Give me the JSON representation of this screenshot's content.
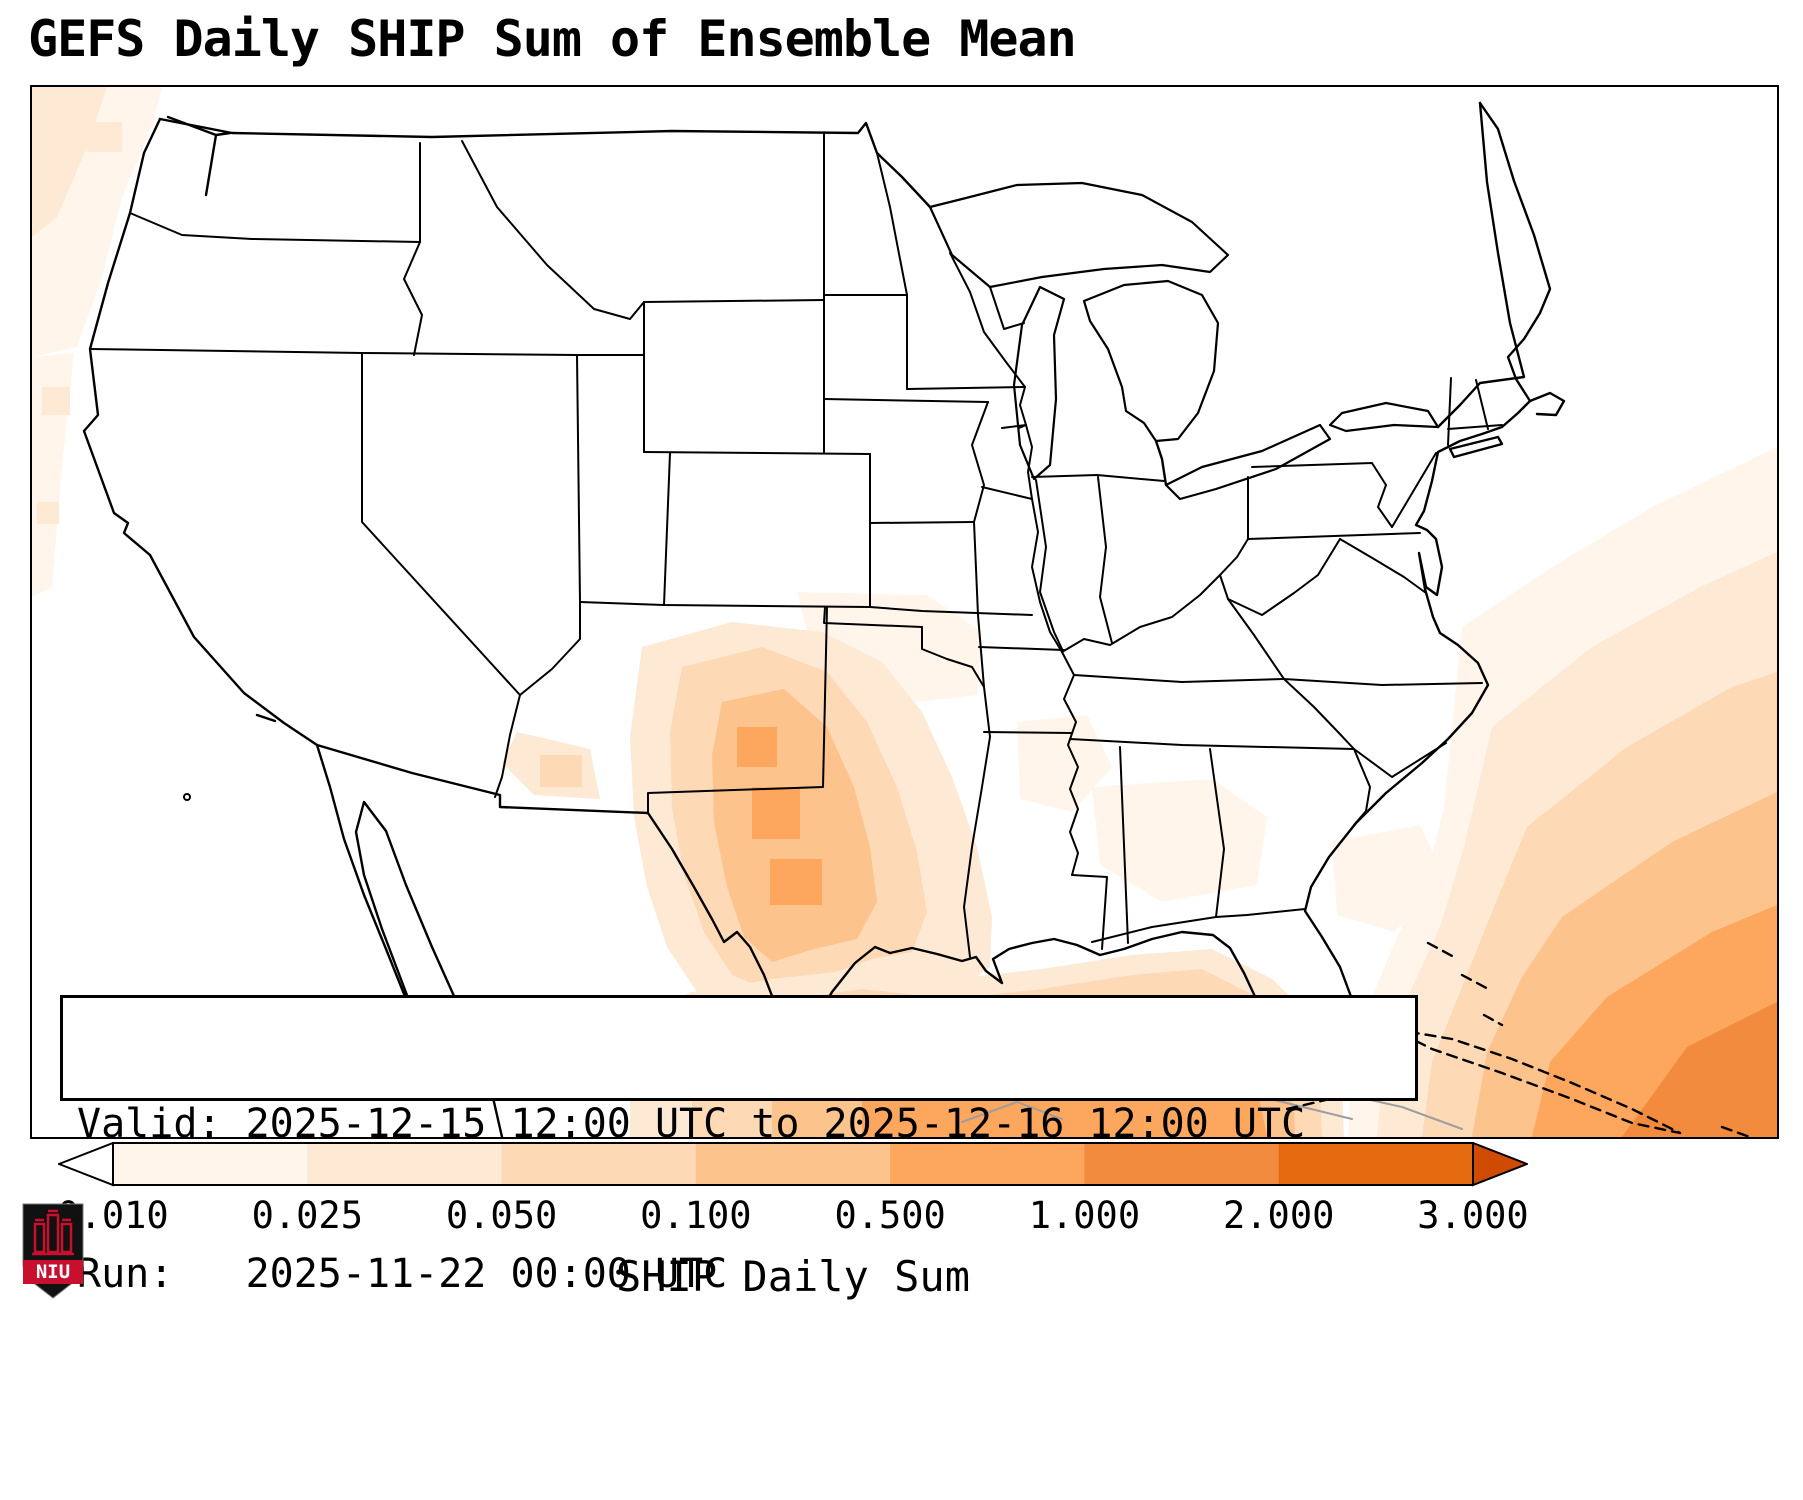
{
  "title": "GEFS Daily SHIP Sum of Ensemble Mean",
  "info_box": {
    "valid_label": "Valid:",
    "valid_value": "2025-12-15 12:00 UTC to 2025-12-16 12:00 UTC",
    "run_label": "Run:",
    "run_value": "2025-11-22 00:00 UTC"
  },
  "colorbar": {
    "label": "SHIP Daily Sum",
    "ticks": [
      "0.010",
      "0.025",
      "0.050",
      "0.100",
      "0.500",
      "1.000",
      "2.000",
      "3.000"
    ],
    "segment_colors": [
      "#fff5eb",
      "#fee9d5",
      "#fdd9b5",
      "#fdc38c",
      "#fda65d",
      "#f28b3d",
      "#e5690f"
    ],
    "under_color": "#ffffff",
    "over_color": "#cf4a02",
    "outline_color": "#000000"
  },
  "logo": {
    "text": "NIU",
    "shield_color": "#111111",
    "accent_color": "#c8102e"
  },
  "map": {
    "background": "#ffffff",
    "border_color": "#000000",
    "state_line_color": "#000000",
    "foreign_coast_color": "#9e9e9e"
  },
  "chart_data": {
    "type": "heatmap",
    "title": "GEFS Daily SHIP Sum of Ensemble Mean",
    "colorbar_label": "SHIP Daily Sum",
    "levels": [
      0.01,
      0.025,
      0.05,
      0.1,
      0.5,
      1.0,
      2.0,
      3.0
    ],
    "valid": "2025-12-15 12:00 UTC to 2025-12-16 12:00 UTC",
    "run": "2025-11-22 00:00 UTC",
    "regions": [
      {
        "name": "central and south Texas",
        "approx_max": 0.5
      },
      {
        "name": "Gulf of Mexico coast and offshore",
        "approx_max": 1.0
      },
      {
        "name": "Florida Straits / Caribbean (bottom right corner)",
        "approx_max": 3.0
      },
      {
        "name": "Atlantic off the Southeast coast",
        "approx_max": 0.5
      },
      {
        "name": "Oklahoma / Kansas border area",
        "approx_max": 0.025
      },
      {
        "name": "Pacific Northwest coast",
        "approx_max": 0.05
      }
    ]
  }
}
